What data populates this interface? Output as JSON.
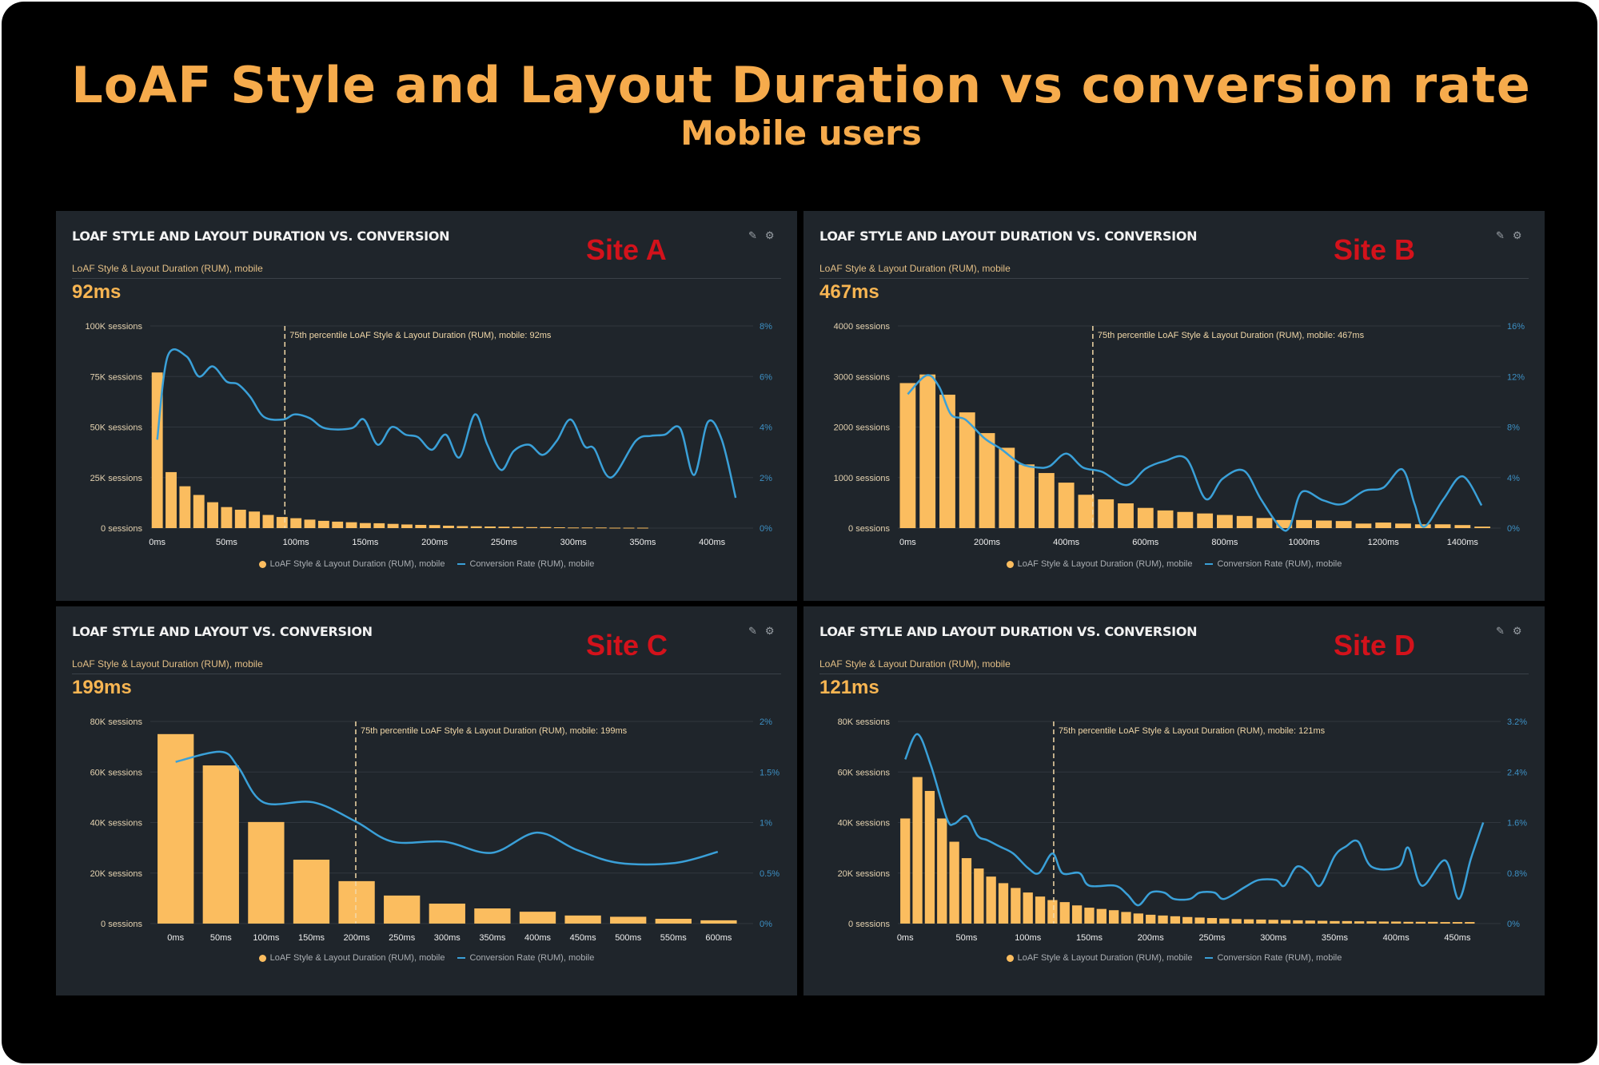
{
  "header": {
    "title": "LoAF Style and Layout Duration vs conversion rate",
    "subtitle": "Mobile users"
  },
  "colors": {
    "title": "#f6ab4c",
    "bars": "#fbbd5f",
    "line": "#3aa0d8",
    "site_label": "#d3121b",
    "panel_bg": "#1f252b"
  },
  "panels": [
    {
      "title": "LOAF STYLE AND LAYOUT DURATION VS. CONVERSION",
      "site_label": "Site A",
      "subtitle": "LoAF Style & Layout Duration (RUM), mobile",
      "value": "92ms",
      "icons": [
        "pencil-icon",
        "gear-icon"
      ],
      "legend": {
        "bars": "LoAF Style & Layout Duration (RUM), mobile",
        "line": "Conversion Rate (RUM), mobile"
      }
    },
    {
      "title": "LOAF STYLE AND LAYOUT DURATION VS. CONVERSION",
      "site_label": "Site B",
      "subtitle": "LoAF Style & Layout Duration (RUM), mobile",
      "value": "467ms",
      "icons": [
        "pencil-icon",
        "gear-icon"
      ],
      "legend": {
        "bars": "LoAF Style & Layout Duration (RUM), mobile",
        "line": "Conversion Rate (RUM), mobile"
      }
    },
    {
      "title": "LOAF STYLE AND LAYOUT VS. CONVERSION",
      "site_label": "Site C",
      "subtitle": "LoAF Style & Layout Duration (RUM), mobile",
      "value": "199ms",
      "icons": [
        "pencil-icon",
        "gear-icon"
      ],
      "legend": {
        "bars": "LoAF Style & Layout Duration (RUM), mobile",
        "line": "Conversion Rate (RUM), mobile"
      }
    },
    {
      "title": "LOAF STYLE AND LAYOUT DURATION VS. CONVERSION",
      "site_label": "Site D",
      "subtitle": "LoAF Style & Layout Duration (RUM), mobile",
      "value": "121ms",
      "icons": [
        "pencil-icon",
        "gear-icon"
      ],
      "legend": {
        "bars": "LoAF Style & Layout Duration (RUM), mobile",
        "line": "Conversion Rate (RUM), mobile"
      }
    }
  ],
  "chart_data": [
    {
      "type": "bar+line",
      "xlim": [
        -5,
        425
      ],
      "x_ticks": [
        0,
        50,
        100,
        150,
        200,
        250,
        300,
        350,
        400
      ],
      "x_tick_labels": [
        "0ms",
        "50ms",
        "100ms",
        "150ms",
        "200ms",
        "250ms",
        "300ms",
        "350ms",
        "400ms"
      ],
      "ylim_left": [
        0,
        100000
      ],
      "y_left_ticks": [
        0,
        25000,
        50000,
        75000,
        100000
      ],
      "y_left_tick_labels": [
        "0 sessions",
        "25K sessions",
        "50K sessions",
        "75K sessions",
        "100K sessions"
      ],
      "ylim_right": [
        0,
        8
      ],
      "y_right_ticks": [
        0,
        2,
        4,
        6,
        8
      ],
      "y_right_tick_labels": [
        "0%",
        "2%",
        "4%",
        "6%",
        "8%"
      ],
      "grid": true,
      "legend_position": "bottom",
      "percentile_marker": {
        "x": 92,
        "label": "75th percentile LoAF Style & Layout Duration (RUM), mobile: 92ms"
      },
      "bar_bin_ms": 10,
      "bar_series": {
        "name": "LoAF Style & Layout Duration (RUM), mobile",
        "x_start": 0,
        "values": [
          77000,
          27700,
          20700,
          16400,
          12800,
          10400,
          9100,
          8200,
          6500,
          5500,
          4900,
          4200,
          3600,
          3200,
          2900,
          2500,
          2400,
          2100,
          1800,
          1600,
          1500,
          1200,
          1000,
          900,
          800,
          700,
          600,
          500,
          500,
          400,
          300,
          300,
          300,
          200,
          200,
          200
        ]
      },
      "line_series": {
        "name": "Conversion Rate (RUM), mobile",
        "points": [
          [
            0,
            3.5
          ],
          [
            7.5,
            6.8
          ],
          [
            21,
            6.8
          ],
          [
            30,
            6.0
          ],
          [
            40,
            6.4
          ],
          [
            50,
            5.8
          ],
          [
            58,
            5.7
          ],
          [
            67,
            5.2
          ],
          [
            77,
            4.4
          ],
          [
            91,
            4.3
          ],
          [
            99,
            4.5
          ],
          [
            110,
            4.35
          ],
          [
            121,
            3.95
          ],
          [
            140,
            3.95
          ],
          [
            149,
            4.3
          ],
          [
            159,
            3.3
          ],
          [
            169,
            4.0
          ],
          [
            179,
            3.7
          ],
          [
            188,
            3.6
          ],
          [
            198,
            3.1
          ],
          [
            208,
            3.7
          ],
          [
            218,
            2.8
          ],
          [
            229,
            4.5
          ],
          [
            238,
            3.3
          ],
          [
            248,
            2.3
          ],
          [
            257,
            3.05
          ],
          [
            268,
            3.3
          ],
          [
            278,
            2.9
          ],
          [
            288,
            3.45
          ],
          [
            298,
            4.3
          ],
          [
            308,
            3.25
          ],
          [
            315,
            3.15
          ],
          [
            327,
            2.0
          ],
          [
            345,
            3.45
          ],
          [
            356,
            3.65
          ],
          [
            366,
            3.7
          ],
          [
            377,
            3.95
          ],
          [
            387,
            2.1
          ],
          [
            397,
            4.2
          ],
          [
            407,
            3.5
          ],
          [
            417,
            1.2
          ]
        ]
      }
    },
    {
      "type": "bar+line",
      "xlim": [
        -25,
        1480
      ],
      "x_ticks": [
        0,
        200,
        400,
        600,
        800,
        1000,
        1200,
        1400
      ],
      "x_tick_labels": [
        "0ms",
        "200ms",
        "400ms",
        "600ms",
        "800ms",
        "1000ms",
        "1200ms",
        "1400ms"
      ],
      "ylim_left": [
        0,
        4000
      ],
      "y_left_ticks": [
        0,
        1000,
        2000,
        3000,
        4000
      ],
      "y_left_tick_labels": [
        "0 sessions",
        "1000 sessions",
        "2000 sessions",
        "3000 sessions",
        "4000 sessions"
      ],
      "ylim_right": [
        0,
        16
      ],
      "y_right_ticks": [
        0,
        4,
        8,
        12,
        16
      ],
      "y_right_tick_labels": [
        "0%",
        "4%",
        "8%",
        "12%",
        "16%"
      ],
      "grid": true,
      "legend_position": "bottom",
      "percentile_marker": {
        "x": 467,
        "label": "75th percentile LoAF Style & Layout Duration (RUM), mobile: 467ms"
      },
      "bar_bin_ms": 50,
      "bar_series": {
        "name": "LoAF Style & Layout Duration (RUM), mobile",
        "x_start": 0,
        "values": [
          2870,
          3040,
          2640,
          2290,
          1880,
          1590,
          1260,
          1090,
          900,
          660,
          570,
          490,
          400,
          350,
          320,
          290,
          260,
          240,
          200,
          160,
          160,
          150,
          140,
          90,
          110,
          90,
          75,
          75,
          60,
          30
        ]
      },
      "line_series": {
        "name": "Conversion Rate (RUM), mobile",
        "points": [
          [
            0,
            10.6
          ],
          [
            48,
            12.1
          ],
          [
            79,
            11.2
          ],
          [
            109,
            9.0
          ],
          [
            145,
            8.6
          ],
          [
            194,
            7.1
          ],
          [
            236,
            6.25
          ],
          [
            285,
            5.1
          ],
          [
            327,
            4.8
          ],
          [
            358,
            4.9
          ],
          [
            400,
            5.9
          ],
          [
            442,
            4.8
          ],
          [
            491,
            4.45
          ],
          [
            552,
            3.4
          ],
          [
            600,
            4.7
          ],
          [
            648,
            5.3
          ],
          [
            703,
            5.5
          ],
          [
            752,
            2.3
          ],
          [
            794,
            3.9
          ],
          [
            848,
            4.55
          ],
          [
            891,
            2.3
          ],
          [
            939,
            0.1
          ],
          [
            964,
            0.1
          ],
          [
            994,
            2.85
          ],
          [
            1048,
            2.2
          ],
          [
            1097,
            1.9
          ],
          [
            1152,
            2.95
          ],
          [
            1200,
            3.2
          ],
          [
            1248,
            4.65
          ],
          [
            1279,
            1.9
          ],
          [
            1303,
            0.1
          ],
          [
            1352,
            2.3
          ],
          [
            1400,
            4.1
          ],
          [
            1448,
            1.8
          ]
        ]
      }
    },
    {
      "type": "bar+line",
      "xlim": [
        -28,
        631
      ],
      "x_ticks": [
        0,
        50,
        100,
        150,
        200,
        250,
        300,
        350,
        400,
        450,
        500,
        550,
        600
      ],
      "x_tick_labels": [
        "0ms",
        "50ms",
        "100ms",
        "150ms",
        "200ms",
        "250ms",
        "300ms",
        "350ms",
        "400ms",
        "450ms",
        "500ms",
        "550ms",
        "600ms"
      ],
      "ylim_left": [
        0,
        80000
      ],
      "y_left_ticks": [
        0,
        20000,
        40000,
        60000,
        80000
      ],
      "y_left_tick_labels": [
        "0 sessions",
        "20K sessions",
        "40K sessions",
        "60K sessions",
        "80K sessions"
      ],
      "ylim_right": [
        0,
        2
      ],
      "y_right_ticks": [
        0,
        0.5,
        1,
        1.5,
        2
      ],
      "y_right_tick_labels": [
        "0%",
        "0.5%",
        "1%",
        "1.5%",
        "2%"
      ],
      "grid": true,
      "legend_position": "bottom",
      "percentile_marker": {
        "x": 199,
        "label": "75th percentile LoAF Style & Layout Duration (RUM), mobile: 199ms"
      },
      "bar_bin_ms": 50,
      "bar_series": {
        "name": "LoAF Style & Layout Duration (RUM), mobile",
        "x_start": 0,
        "values": [
          75000,
          62600,
          40200,
          25300,
          16800,
          11100,
          7900,
          6000,
          4700,
          3200,
          2700,
          1900,
          1300
        ]
      },
      "line_series": {
        "name": "Conversion Rate (RUM), mobile",
        "points": [
          [
            0,
            1.6
          ],
          [
            50,
            1.7
          ],
          [
            69,
            1.55
          ],
          [
            97,
            1.2
          ],
          [
            152,
            1.2
          ],
          [
            199,
            1.01
          ],
          [
            240,
            0.81
          ],
          [
            297,
            0.81
          ],
          [
            349,
            0.7
          ],
          [
            399,
            0.9
          ],
          [
            443,
            0.73
          ],
          [
            490,
            0.6
          ],
          [
            552,
            0.6
          ],
          [
            599,
            0.71
          ]
        ]
      }
    },
    {
      "type": "bar+line",
      "xlim": [
        -6,
        480
      ],
      "x_ticks": [
        0,
        50,
        100,
        150,
        200,
        250,
        300,
        350,
        400,
        450
      ],
      "x_tick_labels": [
        "0ms",
        "50ms",
        "100ms",
        "150ms",
        "200ms",
        "250ms",
        "300ms",
        "350ms",
        "400ms",
        "450ms"
      ],
      "ylim_left": [
        0,
        80000
      ],
      "y_left_ticks": [
        0,
        20000,
        40000,
        60000,
        80000
      ],
      "y_left_tick_labels": [
        "0 sessions",
        "20K sessions",
        "40K sessions",
        "60K sessions",
        "80K sessions"
      ],
      "ylim_right": [
        0,
        3.2
      ],
      "y_right_ticks": [
        0,
        0.8,
        1.6,
        2.4,
        3.2
      ],
      "y_right_tick_labels": [
        "0%",
        "0.8%",
        "1.6%",
        "2.4%",
        "3.2%"
      ],
      "grid": true,
      "legend_position": "bottom",
      "percentile_marker": {
        "x": 121,
        "label": "75th percentile LoAF Style & Layout Duration (RUM), mobile: 121ms"
      },
      "bar_bin_ms": 10,
      "bar_series": {
        "name": "LoAF Style & Layout Duration (RUM), mobile",
        "x_start": 0,
        "values": [
          41600,
          58000,
          52500,
          41600,
          32400,
          25900,
          21800,
          18600,
          16000,
          14100,
          12300,
          10700,
          9300,
          8500,
          7200,
          6300,
          5800,
          5300,
          4600,
          4000,
          3500,
          3200,
          2900,
          2600,
          2400,
          2200,
          2000,
          1800,
          1700,
          1600,
          1500,
          1400,
          1300,
          1200,
          1100,
          1000,
          1000,
          900,
          900,
          800,
          800,
          700,
          700,
          700,
          600,
          600,
          600
        ]
      },
      "line_series": {
        "name": "Conversion Rate (RUM), mobile",
        "points": [
          [
            0,
            2.6
          ],
          [
            10,
            3.0
          ],
          [
            21,
            2.5
          ],
          [
            34,
            1.66
          ],
          [
            40,
            1.58
          ],
          [
            50,
            1.7
          ],
          [
            59,
            1.39
          ],
          [
            67,
            1.32
          ],
          [
            77,
            1.22
          ],
          [
            88,
            1.11
          ],
          [
            100,
            0.88
          ],
          [
            109,
            0.8
          ],
          [
            120,
            1.11
          ],
          [
            128,
            0.8
          ],
          [
            142,
            0.8
          ],
          [
            150,
            0.6
          ],
          [
            171,
            0.6
          ],
          [
            181,
            0.46
          ],
          [
            190,
            0.29
          ],
          [
            200,
            0.49
          ],
          [
            211,
            0.49
          ],
          [
            219,
            0.39
          ],
          [
            232,
            0.39
          ],
          [
            240,
            0.49
          ],
          [
            252,
            0.49
          ],
          [
            260,
            0.39
          ],
          [
            277,
            0.58
          ],
          [
            288,
            0.69
          ],
          [
            302,
            0.69
          ],
          [
            309,
            0.6
          ],
          [
            319,
            0.9
          ],
          [
            329,
            0.8
          ],
          [
            338,
            0.6
          ],
          [
            350,
            1.07
          ],
          [
            359,
            1.22
          ],
          [
            369,
            1.3
          ],
          [
            380,
            0.9
          ],
          [
            402,
            0.9
          ],
          [
            410,
            1.2
          ],
          [
            421,
            0.6
          ],
          [
            440,
            1.0
          ],
          [
            451,
            0.39
          ],
          [
            461,
            1.03
          ],
          [
            471,
            1.6
          ]
        ]
      }
    }
  ]
}
